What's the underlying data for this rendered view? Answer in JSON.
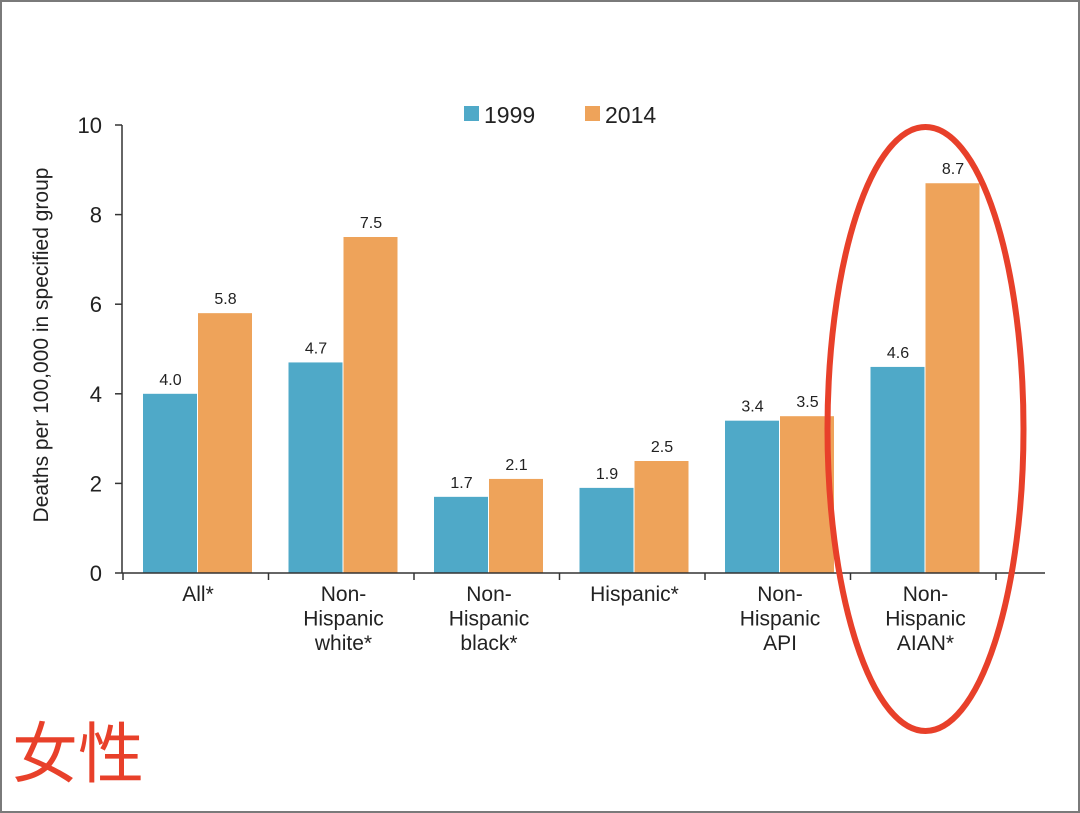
{
  "chart_data": {
    "type": "bar",
    "title": "",
    "xlabel": "",
    "ylabel": "Deaths per 100,000 in specified group",
    "ylim": [
      0,
      10
    ],
    "yticks": [
      0,
      2,
      4,
      6,
      8,
      10
    ],
    "grid": false,
    "legend_position": "top-center",
    "categories": [
      [
        "All*"
      ],
      [
        "Non-",
        "Hispanic",
        "white*"
      ],
      [
        "Non-",
        "Hispanic",
        "black*"
      ],
      [
        "Hispanic*"
      ],
      [
        "Non-",
        "Hispanic",
        "API"
      ],
      [
        "Non-",
        "Hispanic",
        "AIAN*"
      ]
    ],
    "series": [
      {
        "name": "1999",
        "values": [
          4.0,
          4.7,
          1.7,
          1.9,
          3.4,
          4.6
        ],
        "labels": [
          "4.0",
          "4.7",
          "1.7",
          "1.9",
          "3.4",
          "4.6"
        ]
      },
      {
        "name": "2014",
        "values": [
          5.8,
          7.5,
          2.1,
          2.5,
          3.5,
          8.7
        ],
        "labels": [
          "5.8",
          "7.5",
          "2.1",
          "2.5",
          "3.5",
          "8.7"
        ]
      }
    ],
    "highlighted_category_index": 5
  },
  "colors": {
    "series_1999": "#4fa9c8",
    "series_2014": "#eea35a",
    "axis": "#333333",
    "annotation": "#e8402a"
  },
  "annotation_text": "女性"
}
